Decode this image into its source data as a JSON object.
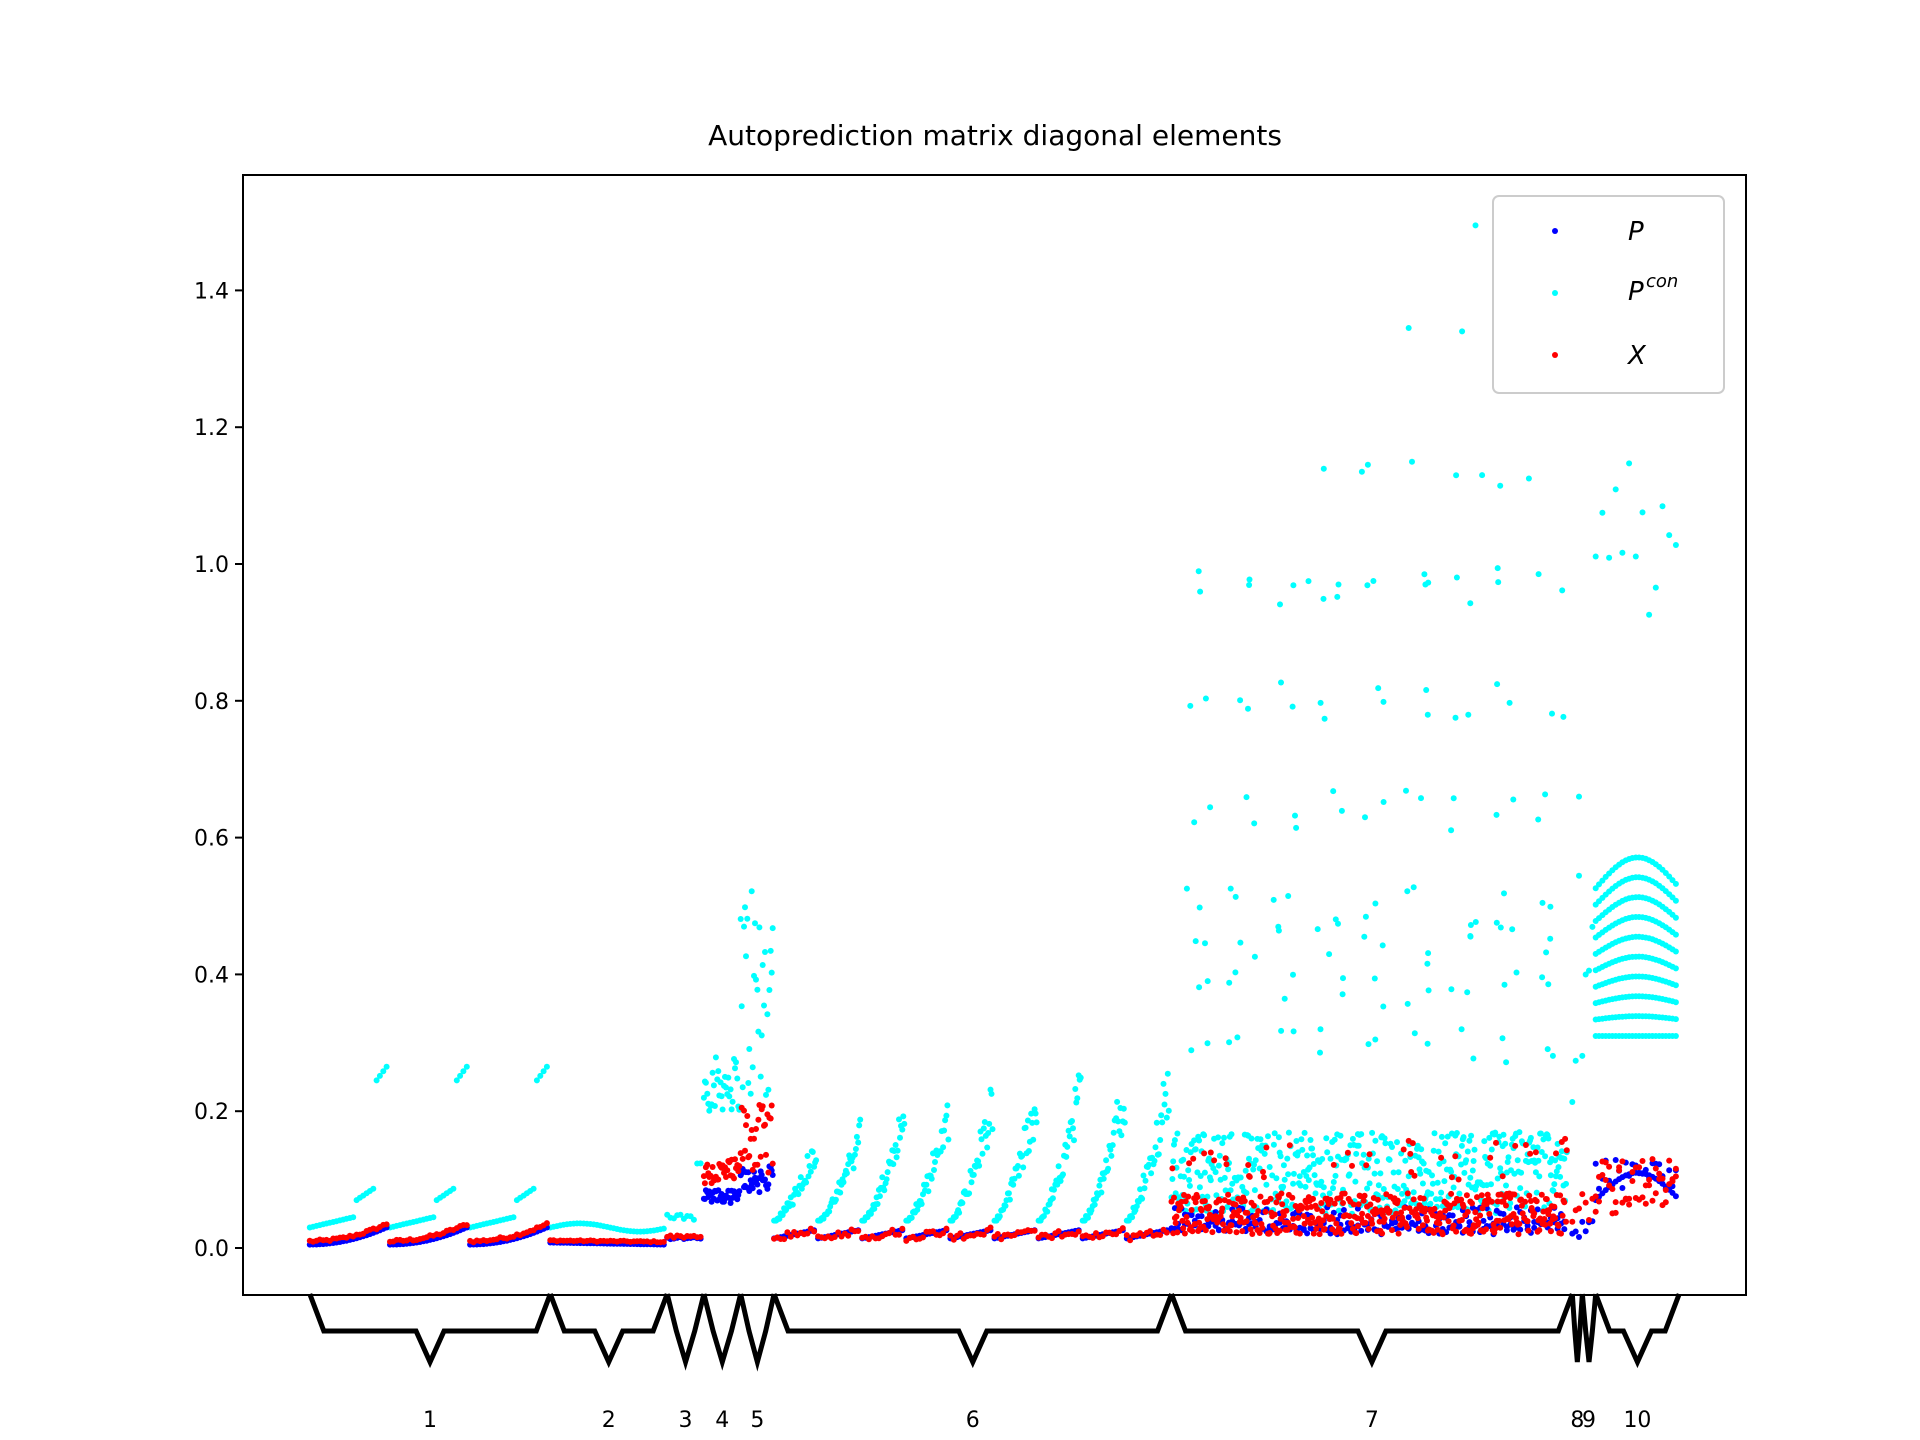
{
  "chart_data": {
    "type": "scatter",
    "title": "Autoprediction matrix diagonal elements",
    "xlabel": "",
    "ylabel": "",
    "ylim": [
      -0.07,
      1.57
    ],
    "yticks": [
      0.0,
      0.2,
      0.4,
      0.6,
      0.8,
      1.0,
      1.2,
      1.4
    ],
    "ytick_labels": [
      "0.0",
      "0.2",
      "0.4",
      "0.6",
      "0.8",
      "1.0",
      "1.2",
      "1.4"
    ],
    "x_index_range": [
      0,
      450
    ],
    "grid": false,
    "legend": {
      "placement": "top-right",
      "entries": [
        {
          "label": "P",
          "sup": "",
          "color": "#0000ff"
        },
        {
          "label": "P",
          "sup": "con",
          "color": "#00ffff"
        },
        {
          "label": "X",
          "sup": "",
          "color": "#ff0000"
        }
      ]
    },
    "series": [
      {
        "name": "P",
        "color": "#0000ff",
        "note_values": "approx. 0.01-0.13, small within-block trends"
      },
      {
        "name": "Pcon",
        "color": "#00ffff",
        "note_values": "approx. 0.03-1.5, largest in groups 7 and 10"
      },
      {
        "name": "X",
        "color": "#ff0000",
        "note_values": "approx. 0.01-0.22"
      }
    ],
    "groups": [
      {
        "label": "1",
        "start": 20,
        "end": 92
      },
      {
        "label": "2",
        "start": 92,
        "end": 127
      },
      {
        "label": "3",
        "start": 127,
        "end": 138
      },
      {
        "label": "4",
        "start": 138,
        "end": 149
      },
      {
        "label": "5",
        "start": 149,
        "end": 159
      },
      {
        "label": "6",
        "start": 159,
        "end": 278
      },
      {
        "label": "7",
        "start": 278,
        "end": 398
      },
      {
        "label": "8",
        "start": 398,
        "end": 401
      },
      {
        "label": "9",
        "start": 401,
        "end": 405
      },
      {
        "label": "10",
        "start": 405,
        "end": 430
      }
    ]
  }
}
